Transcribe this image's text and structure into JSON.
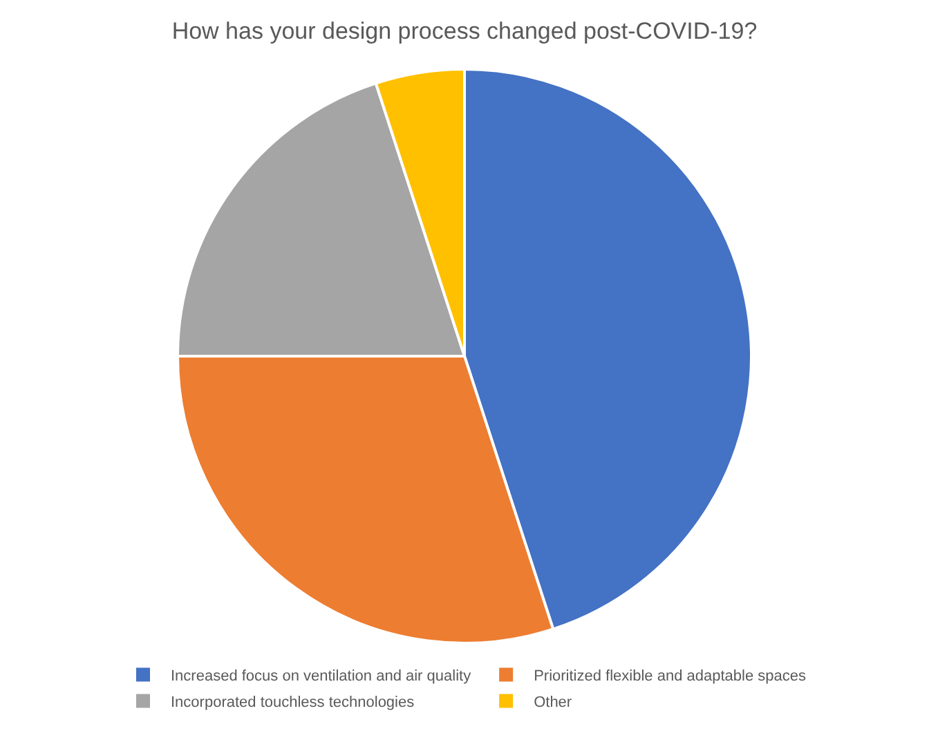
{
  "chart_data": {
    "type": "pie",
    "title": "How has your design process changed post-COVID-19?",
    "categories": [
      "Increased focus on ventilation and air quality",
      "Prioritized flexible and adaptable spaces",
      "Incorporated touchless technologies",
      "Other"
    ],
    "values": [
      45,
      30,
      20,
      5
    ],
    "colors": [
      "#4472c4",
      "#ed7d31",
      "#a5a5a5",
      "#ffc000"
    ],
    "legend": "bottom"
  }
}
